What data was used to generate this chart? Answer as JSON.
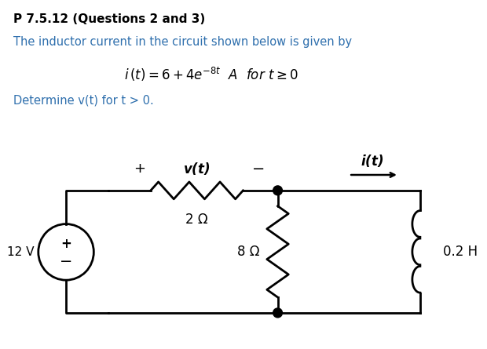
{
  "title": "P 7.5.12 (Questions 2 and 3)",
  "title_color": "#000000",
  "line1": "The inductor current in the circuit shown below is given by",
  "line1_color": "#2e6fad",
  "line3": "Determine v(t) for t > 0.",
  "line3_color": "#2e6fad",
  "bg_color": "#ffffff",
  "r1_label": "2 Ω",
  "r2_label": "8 Ω",
  "l_label": "0.2 H",
  "vs_label": "12 V"
}
